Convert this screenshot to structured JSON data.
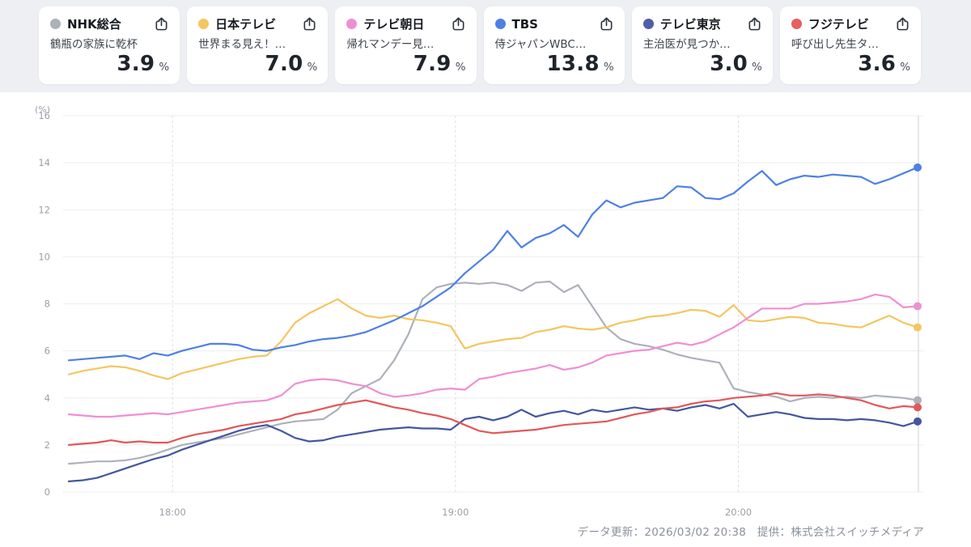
{
  "legend": {
    "cards": [
      {
        "channel": "NHK総合",
        "program": "鶴瓶の家族に乾杯",
        "value": "3.9",
        "unit": "%",
        "color": "#acb1ba"
      },
      {
        "channel": "日本テレビ",
        "program": "世界まる見え！…",
        "value": "7.0",
        "unit": "%",
        "color": "#f3c660"
      },
      {
        "channel": "テレビ朝日",
        "program": "帰れマンデー見…",
        "value": "7.9",
        "unit": "%",
        "color": "#ee8fd4"
      },
      {
        "channel": "TBS",
        "program": "侍ジャパンWBC…",
        "value": "13.8",
        "unit": "%",
        "color": "#4e80e3"
      },
      {
        "channel": "テレビ東京",
        "program": "主治医が見つか…",
        "value": "3.0",
        "unit": "%",
        "color": "#4f5fa5"
      },
      {
        "channel": "フジテレビ",
        "program": "呼び出し先生タ…",
        "value": "3.6",
        "unit": "%",
        "color": "#e8605f"
      }
    ]
  },
  "footer": {
    "text": "データ更新：2026/03/02 20:38　提供：株式会社スイッチメディア"
  },
  "chart_data": {
    "type": "line",
    "title": "",
    "xlabel": "",
    "ylabel": "(%)",
    "ylim": [
      0,
      16
    ],
    "yticks": [
      0,
      2,
      4,
      6,
      8,
      10,
      12,
      14,
      16
    ],
    "grid": true,
    "legend_position": "top-cards",
    "x_time_start": "17:38",
    "x_time_end": "20:38",
    "x_total_minutes": 180,
    "x_minутes_step_note": "one value every 3 minutes, 61 points per series",
    "x_minutes_step": 3,
    "xticks": [
      {
        "label": "18:00",
        "minute": 22
      },
      {
        "label": "19:00",
        "minute": 82
      },
      {
        "label": "20:00",
        "minute": 142
      }
    ],
    "series": [
      {
        "name": "NHK総合",
        "program": "鶴瓶の家族に乾杯",
        "current_value": 3.9,
        "color": "#acb1ba",
        "values": [
          1.2,
          1.25,
          1.3,
          1.3,
          1.35,
          1.45,
          1.6,
          1.8,
          2.0,
          2.1,
          2.2,
          2.3,
          2.45,
          2.6,
          2.75,
          2.9,
          3.0,
          3.05,
          3.1,
          3.5,
          4.2,
          4.5,
          4.8,
          5.6,
          6.7,
          8.2,
          8.7,
          8.85,
          8.9,
          8.85,
          8.9,
          8.8,
          8.55,
          8.9,
          8.95,
          8.5,
          8.8,
          7.9,
          7.0,
          6.5,
          6.3,
          6.2,
          6.05,
          5.85,
          5.7,
          5.6,
          5.5,
          4.4,
          4.25,
          4.15,
          4.05,
          3.85,
          4.0,
          4.05,
          4.0,
          4.05,
          4.0,
          4.1,
          4.05,
          4.0,
          3.9
        ]
      },
      {
        "name": "日本テレビ",
        "program": "世界まる見え！…",
        "current_value": 7.0,
        "color": "#f3c660",
        "values": [
          5.0,
          5.15,
          5.25,
          5.35,
          5.3,
          5.15,
          4.95,
          4.8,
          5.05,
          5.2,
          5.35,
          5.5,
          5.65,
          5.75,
          5.8,
          6.4,
          7.2,
          7.6,
          7.9,
          8.2,
          7.8,
          7.5,
          7.4,
          7.5,
          7.35,
          7.3,
          7.2,
          7.05,
          6.1,
          6.3,
          6.4,
          6.5,
          6.55,
          6.8,
          6.9,
          7.05,
          6.95,
          6.9,
          7.0,
          7.2,
          7.3,
          7.45,
          7.5,
          7.6,
          7.75,
          7.7,
          7.45,
          7.95,
          7.3,
          7.25,
          7.35,
          7.45,
          7.4,
          7.2,
          7.15,
          7.05,
          7.0,
          7.25,
          7.5,
          7.2,
          7.0
        ]
      },
      {
        "name": "テレビ朝日",
        "program": "帰れマンデー見…",
        "current_value": 7.9,
        "color": "#ee8fd4",
        "values": [
          3.3,
          3.25,
          3.2,
          3.2,
          3.25,
          3.3,
          3.35,
          3.3,
          3.4,
          3.5,
          3.6,
          3.7,
          3.8,
          3.85,
          3.9,
          4.1,
          4.6,
          4.75,
          4.8,
          4.75,
          4.6,
          4.5,
          4.2,
          4.05,
          4.1,
          4.2,
          4.35,
          4.4,
          4.35,
          4.8,
          4.9,
          5.05,
          5.15,
          5.25,
          5.4,
          5.2,
          5.3,
          5.5,
          5.8,
          5.9,
          6.0,
          6.05,
          6.2,
          6.35,
          6.25,
          6.4,
          6.7,
          7.0,
          7.4,
          7.8,
          7.8,
          7.8,
          8.0,
          8.0,
          8.05,
          8.1,
          8.2,
          8.4,
          8.3,
          7.85,
          7.9
        ]
      },
      {
        "name": "テレビ東京",
        "program": "主治医が見つか…",
        "current_value": 3.0,
        "color": "#44569f",
        "values": [
          0.45,
          0.5,
          0.6,
          0.8,
          1.0,
          1.2,
          1.4,
          1.55,
          1.8,
          2.0,
          2.2,
          2.4,
          2.6,
          2.75,
          2.85,
          2.6,
          2.3,
          2.15,
          2.2,
          2.35,
          2.45,
          2.55,
          2.65,
          2.7,
          2.75,
          2.7,
          2.7,
          2.65,
          3.1,
          3.2,
          3.05,
          3.2,
          3.5,
          3.2,
          3.35,
          3.45,
          3.3,
          3.5,
          3.4,
          3.5,
          3.6,
          3.5,
          3.55,
          3.45,
          3.6,
          3.7,
          3.55,
          3.75,
          3.2,
          3.3,
          3.4,
          3.3,
          3.15,
          3.1,
          3.1,
          3.05,
          3.1,
          3.05,
          2.95,
          2.8,
          3.0
        ]
      },
      {
        "name": "フジテレビ",
        "program": "呼び出し先生タ…",
        "current_value": 3.6,
        "color": "#e2575a",
        "values": [
          2.0,
          2.05,
          2.1,
          2.2,
          2.1,
          2.15,
          2.1,
          2.1,
          2.3,
          2.45,
          2.55,
          2.65,
          2.8,
          2.9,
          3.0,
          3.1,
          3.3,
          3.4,
          3.55,
          3.7,
          3.8,
          3.9,
          3.75,
          3.6,
          3.5,
          3.35,
          3.25,
          3.1,
          2.85,
          2.6,
          2.5,
          2.55,
          2.6,
          2.65,
          2.75,
          2.85,
          2.9,
          2.95,
          3.0,
          3.15,
          3.3,
          3.4,
          3.55,
          3.6,
          3.75,
          3.85,
          3.9,
          4.0,
          4.05,
          4.1,
          4.2,
          4.1,
          4.1,
          4.15,
          4.1,
          4.0,
          3.9,
          3.7,
          3.55,
          3.65,
          3.6
        ]
      },
      {
        "name": "TBS",
        "program": "侍ジャパンWBC…",
        "current_value": 13.8,
        "color": "#4e80e3",
        "values": [
          5.6,
          5.65,
          5.7,
          5.75,
          5.8,
          5.65,
          5.9,
          5.8,
          6.0,
          6.15,
          6.3,
          6.3,
          6.25,
          6.05,
          6.0,
          6.15,
          6.25,
          6.4,
          6.5,
          6.55,
          6.65,
          6.8,
          7.05,
          7.3,
          7.6,
          7.9,
          8.3,
          8.7,
          9.3,
          9.8,
          10.3,
          11.1,
          10.4,
          10.8,
          11.0,
          11.35,
          10.85,
          11.8,
          12.4,
          12.1,
          12.3,
          12.4,
          12.5,
          13.0,
          12.95,
          12.5,
          12.45,
          12.7,
          13.2,
          13.65,
          13.05,
          13.3,
          13.45,
          13.4,
          13.5,
          13.45,
          13.4,
          13.1,
          13.3,
          13.55,
          13.8
        ]
      }
    ]
  }
}
